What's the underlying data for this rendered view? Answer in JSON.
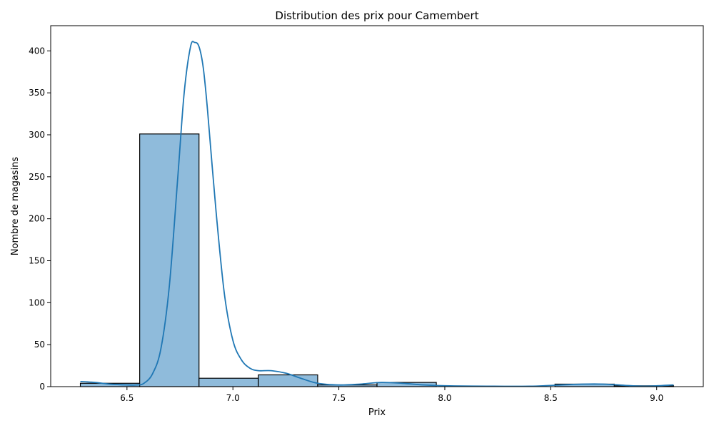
{
  "chart_data": {
    "type": "bar",
    "title": "Distribution des prix pour Camembert",
    "xlabel": "Prix",
    "ylabel": "Nombre de magasins",
    "xlim": [
      6.14,
      9.22
    ],
    "ylim": [
      0,
      430
    ],
    "xticks": [
      6.5,
      7.0,
      7.5,
      8.0,
      8.5,
      9.0
    ],
    "xtick_labels": [
      "6.5",
      "7.0",
      "7.5",
      "8.0",
      "8.5",
      "9.0"
    ],
    "yticks": [
      0,
      50,
      100,
      150,
      200,
      250,
      300,
      350,
      400
    ],
    "ytick_labels": [
      "0",
      "50",
      "100",
      "150",
      "200",
      "250",
      "300",
      "350",
      "400"
    ],
    "grid": false,
    "bins": [
      {
        "start": 6.28,
        "end": 6.56,
        "count": 4
      },
      {
        "start": 6.56,
        "end": 6.84,
        "count": 301
      },
      {
        "start": 6.84,
        "end": 7.12,
        "count": 10
      },
      {
        "start": 7.12,
        "end": 7.4,
        "count": 14
      },
      {
        "start": 7.4,
        "end": 7.68,
        "count": 2
      },
      {
        "start": 7.68,
        "end": 7.96,
        "count": 5
      },
      {
        "start": 7.96,
        "end": 8.24,
        "count": 0
      },
      {
        "start": 8.24,
        "end": 8.52,
        "count": 0
      },
      {
        "start": 8.52,
        "end": 8.8,
        "count": 3
      },
      {
        "start": 8.8,
        "end": 9.08,
        "count": 1
      }
    ],
    "kde": {
      "x": [
        6.28,
        6.35,
        6.42,
        6.5,
        6.55,
        6.58,
        6.62,
        6.66,
        6.7,
        6.74,
        6.77,
        6.8,
        6.82,
        6.84,
        6.86,
        6.88,
        6.92,
        6.96,
        7.0,
        7.04,
        7.08,
        7.12,
        7.18,
        7.25,
        7.32,
        7.4,
        7.5,
        7.6,
        7.7,
        7.8,
        7.9,
        8.0,
        8.2,
        8.4,
        8.55,
        8.65,
        8.75,
        8.85,
        8.95,
        9.08
      ],
      "y": [
        6,
        5,
        3,
        2,
        2,
        4,
        15,
        45,
        120,
        250,
        350,
        405,
        410,
        405,
        380,
        330,
        210,
        110,
        55,
        32,
        22,
        19,
        19,
        16,
        10,
        4,
        2,
        3,
        5,
        4,
        2,
        1,
        0.5,
        0.5,
        2,
        3,
        3,
        1.5,
        0.5,
        2
      ],
      "color": "#1f77b4"
    },
    "bar_fill": "#8fbbdb",
    "bar_edge": "#000000"
  }
}
